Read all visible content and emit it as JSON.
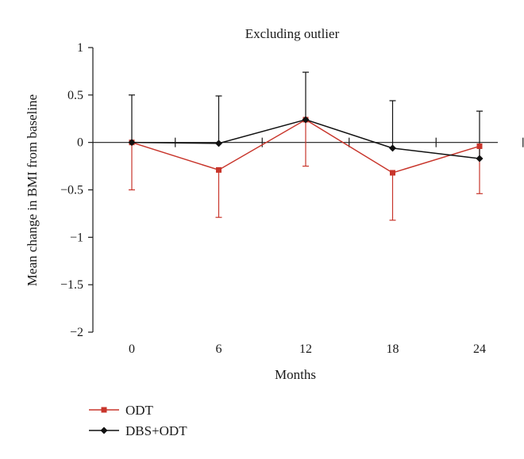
{
  "chart_data": {
    "type": "line",
    "title": "Excluding outlier",
    "xlabel": "Months",
    "ylabel": "Mean change in BMI from baseline",
    "x": [
      0,
      6,
      12,
      18,
      24
    ],
    "x_tick_labels": [
      "0",
      "6",
      "12",
      "18",
      "24"
    ],
    "y_ticks": [
      1,
      0.5,
      0,
      -0.5,
      -1,
      -1.5,
      -2
    ],
    "y_tick_labels": [
      "1",
      "0.5",
      "0",
      "−0.5",
      "−1",
      "−1.5",
      "−2"
    ],
    "ylim": [
      -2,
      1
    ],
    "grid": false,
    "legend_position": "bottom-left",
    "series": [
      {
        "name": "ODT",
        "color": "#c8352b",
        "marker": "square",
        "values": [
          0,
          -0.29,
          0.24,
          -0.32,
          -0.04
        ],
        "error_lower": [
          0.5,
          0.5,
          0.49,
          0.5,
          0.5
        ]
      },
      {
        "name": "DBS+ODT",
        "color": "#111111",
        "marker": "diamond",
        "values": [
          0,
          -0.01,
          0.24,
          -0.06,
          -0.17
        ],
        "error_upper": [
          0.5,
          0.5,
          0.5,
          0.5,
          0.5
        ]
      }
    ]
  }
}
